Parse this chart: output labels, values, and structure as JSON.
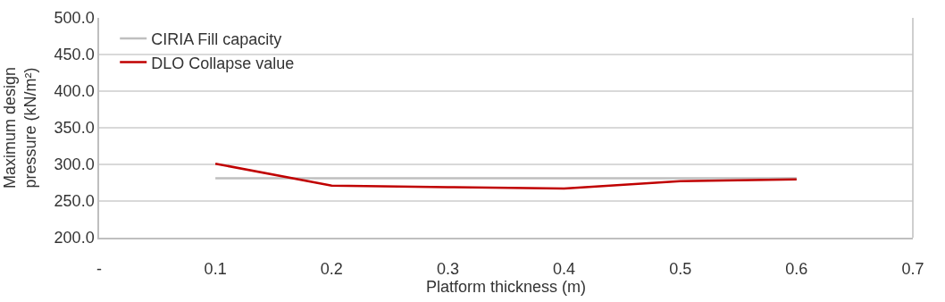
{
  "chart_data": {
    "type": "line",
    "xlabel": "Platform thickness (m)",
    "ylabel": "Maximum design pressure (kN/m²)",
    "x": [
      0.1,
      0.2,
      0.3,
      0.4,
      0.5,
      0.6
    ],
    "series": [
      {
        "name": "CIRIA Fill capacity",
        "color": "#bfbfbf",
        "values": [
          281,
          281,
          281,
          281,
          281,
          281
        ]
      },
      {
        "name": "DLO Collapse value",
        "color": "#c00000",
        "values": [
          301,
          271,
          269,
          267,
          277,
          279.5
        ]
      }
    ],
    "xlim": [
      0,
      0.7
    ],
    "xticks": [
      {
        "value": 0,
        "label": "-"
      },
      0.1,
      0.2,
      0.3,
      0.4,
      0.5,
      0.6,
      0.7
    ],
    "ylim": [
      200,
      500
    ],
    "yticks": [
      {
        "value": 200,
        "label": "200.0"
      },
      {
        "value": 250,
        "label": "250.0"
      },
      {
        "value": 300,
        "label": "300.0"
      },
      {
        "value": 350,
        "label": "350.0"
      },
      {
        "value": 400,
        "label": "400.0"
      },
      {
        "value": 450,
        "label": "450.0"
      },
      {
        "value": 500,
        "label": "500.0"
      }
    ],
    "grid": "y",
    "legend": "top left",
    "marker": "none",
    "line_style": "solid"
  }
}
